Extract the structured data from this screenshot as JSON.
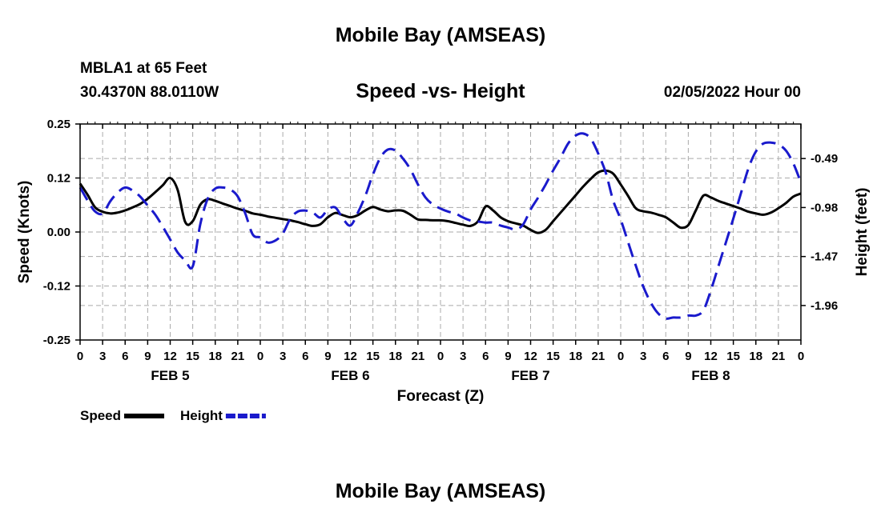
{
  "header": {
    "title": "Mobile Bay (AMSEAS)",
    "station": "MBLA1 at 65 Feet",
    "coords": "30.4370N  88.0110W",
    "subtitle": "Speed -vs- Height",
    "run_time": "02/05/2022 Hour 00",
    "repeat_title": "Mobile Bay (AMSEAS)"
  },
  "chart_data": {
    "type": "line",
    "xlabel": "Forecast (Z)",
    "ylabel_left": "Speed (Knots)",
    "ylabel_right": "Height (feet)",
    "x_range_hours": [
      0,
      96
    ],
    "x_tick_labels": [
      "0",
      "3",
      "6",
      "9",
      "12",
      "15",
      "18",
      "21",
      "0",
      "3",
      "6",
      "9",
      "12",
      "15",
      "18",
      "21",
      "0",
      "3",
      "6",
      "9",
      "12",
      "15",
      "18",
      "21",
      "0",
      "3",
      "6",
      "9",
      "12",
      "15",
      "18",
      "21",
      "0"
    ],
    "day_labels": [
      {
        "label": "FEB 5",
        "hour": 12
      },
      {
        "label": "FEB 6",
        "hour": 36
      },
      {
        "label": "FEB 7",
        "hour": 60
      },
      {
        "label": "FEB 8",
        "hour": 84
      }
    ],
    "left_axis": {
      "ylim": [
        -0.25,
        0.25
      ],
      "ticks": [
        "0.25",
        "0.12",
        "0.00",
        "-0.12",
        "-0.25"
      ],
      "tick_values": [
        0.25,
        0.125,
        0,
        -0.125,
        -0.25
      ]
    },
    "right_axis": {
      "ylim": [
        -2.305,
        -0.1445
      ],
      "ticks": [
        "-0.49",
        "-0.98",
        "-1.47",
        "-1.96"
      ],
      "tick_values": [
        -0.49,
        -0.98,
        -1.47,
        -1.96
      ]
    },
    "grid": true,
    "legend": [
      {
        "label": "Speed",
        "color": "#000000",
        "style": "solid"
      },
      {
        "label": "Height",
        "color": "#1a1acc",
        "style": "dashed"
      }
    ],
    "series": [
      {
        "name": "Speed",
        "axis": "left",
        "color": "#000000",
        "x": [
          0,
          1,
          2,
          3,
          4,
          5,
          6,
          7,
          8,
          9,
          10,
          11,
          12,
          13,
          14,
          15,
          16,
          17,
          18,
          19,
          20,
          21,
          22,
          23,
          24,
          25,
          26,
          27,
          28,
          29,
          30,
          31,
          32,
          33,
          34,
          35,
          36,
          37,
          38,
          39,
          40,
          41,
          42,
          43,
          44,
          45,
          46,
          47,
          48,
          49,
          50,
          51,
          52,
          53,
          54,
          55,
          56,
          57,
          58,
          59,
          60,
          61,
          62,
          63,
          64,
          65,
          66,
          67,
          68,
          69,
          70,
          71,
          72,
          73,
          74,
          75,
          76,
          77,
          78,
          79,
          80,
          81,
          82,
          83,
          84,
          85,
          86,
          87,
          88,
          89,
          90,
          91,
          92,
          93,
          94,
          95,
          96
        ],
        "y": [
          0.112,
          0.086,
          0.057,
          0.047,
          0.043,
          0.045,
          0.05,
          0.057,
          0.065,
          0.077,
          0.092,
          0.108,
          0.125,
          0.097,
          0.023,
          0.025,
          0.063,
          0.076,
          0.072,
          0.066,
          0.06,
          0.054,
          0.049,
          0.043,
          0.04,
          0.036,
          0.033,
          0.03,
          0.027,
          0.023,
          0.018,
          0.014,
          0.018,
          0.034,
          0.044,
          0.039,
          0.034,
          0.039,
          0.05,
          0.058,
          0.052,
          0.048,
          0.05,
          0.049,
          0.04,
          0.029,
          0.028,
          0.027,
          0.027,
          0.025,
          0.021,
          0.017,
          0.014,
          0.025,
          0.059,
          0.05,
          0.034,
          0.025,
          0.02,
          0.015,
          0.005,
          -0.002,
          0.005,
          0.025,
          0.045,
          0.065,
          0.085,
          0.105,
          0.123,
          0.138,
          0.142,
          0.135,
          0.11,
          0.083,
          0.055,
          0.048,
          0.045,
          0.04,
          0.034,
          0.022,
          0.01,
          0.016,
          0.05,
          0.084,
          0.08,
          0.072,
          0.066,
          0.06,
          0.054,
          0.047,
          0.043,
          0.04,
          0.045,
          0.055,
          0.067,
          0.082,
          0.089
        ]
      },
      {
        "name": "Height",
        "axis": "right",
        "color": "#1a1acc",
        "x": [
          0,
          1,
          2,
          3,
          4,
          5,
          6,
          7,
          8,
          9,
          10,
          11,
          12,
          13,
          14,
          15,
          16,
          17,
          18,
          19,
          20,
          21,
          22,
          23,
          24,
          25,
          26,
          27,
          28,
          29,
          30,
          31,
          32,
          33,
          34,
          35,
          36,
          37,
          38,
          39,
          40,
          41,
          42,
          43,
          44,
          45,
          46,
          47,
          48,
          49,
          50,
          51,
          52,
          53,
          54,
          55,
          56,
          57,
          58,
          59,
          60,
          61,
          62,
          63,
          64,
          65,
          66,
          67,
          68,
          69,
          70,
          71,
          72,
          73,
          74,
          75,
          76,
          77,
          78,
          79,
          80,
          81,
          82,
          83,
          84,
          85,
          86,
          87,
          88,
          89,
          90,
          91,
          92,
          93,
          94,
          95,
          96
        ],
        "y": [
          -0.78,
          -0.91,
          -1.02,
          -1.04,
          -0.92,
          -0.83,
          -0.78,
          -0.81,
          -0.87,
          -0.96,
          -1.05,
          -1.17,
          -1.3,
          -1.43,
          -1.51,
          -1.57,
          -1.15,
          -0.89,
          -0.79,
          -0.78,
          -0.8,
          -0.87,
          -1.04,
          -1.25,
          -1.28,
          -1.33,
          -1.31,
          -1.24,
          -1.09,
          -1.02,
          -1.01,
          -1.03,
          -1.08,
          -1.0,
          -0.98,
          -1.09,
          -1.16,
          -1.03,
          -0.86,
          -0.65,
          -0.48,
          -0.4,
          -0.41,
          -0.49,
          -0.6,
          -0.75,
          -0.88,
          -0.95,
          -0.99,
          -1.02,
          -1.04,
          -1.08,
          -1.11,
          -1.12,
          -1.13,
          -1.13,
          -1.16,
          -1.18,
          -1.2,
          -1.15,
          -1.0,
          -0.88,
          -0.75,
          -0.61,
          -0.48,
          -0.34,
          -0.26,
          -0.24,
          -0.29,
          -0.44,
          -0.63,
          -0.91,
          -1.1,
          -1.33,
          -1.56,
          -1.77,
          -1.93,
          -2.04,
          -2.09,
          -2.08,
          -2.08,
          -2.06,
          -2.06,
          -2.01,
          -1.81,
          -1.57,
          -1.33,
          -1.09,
          -0.84,
          -0.59,
          -0.42,
          -0.34,
          -0.33,
          -0.35,
          -0.41,
          -0.54,
          -0.73
        ]
      }
    ]
  }
}
